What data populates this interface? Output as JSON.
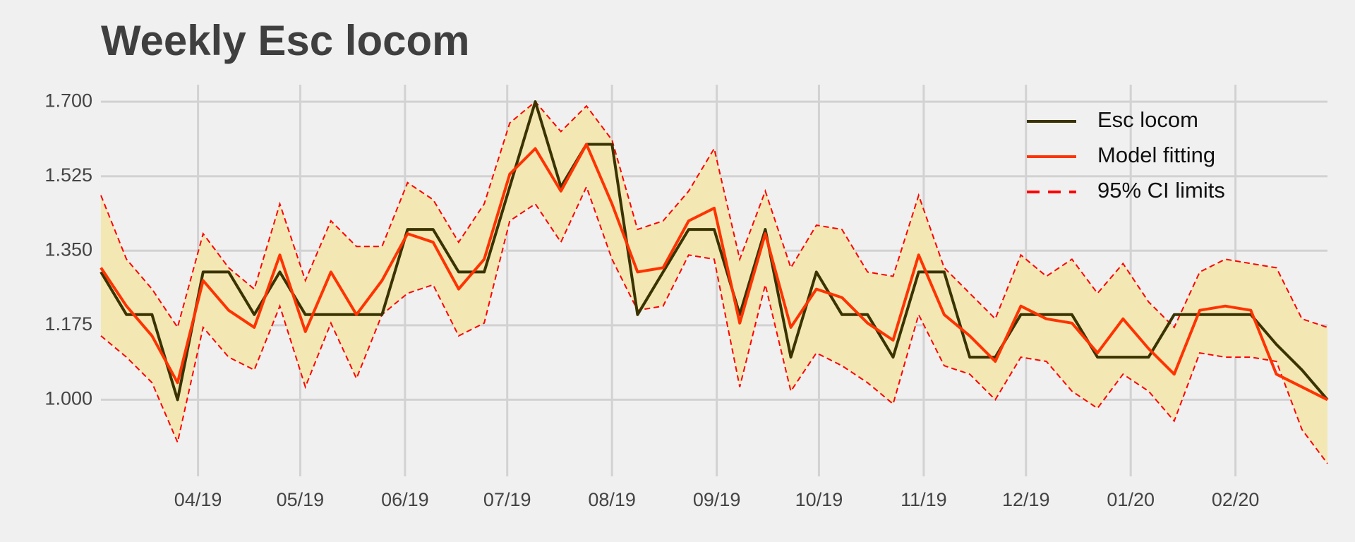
{
  "chart_data": {
    "type": "line",
    "title": "Weekly Esc locom",
    "x": [
      0,
      1,
      2,
      3,
      4,
      5,
      6,
      7,
      8,
      9,
      10,
      11,
      12,
      13,
      14,
      15,
      16,
      17,
      18,
      19,
      20,
      21,
      22,
      23,
      24,
      25,
      26,
      27,
      28,
      29,
      30,
      31,
      32,
      33,
      34,
      35,
      36,
      37,
      38,
      39,
      40,
      41,
      42,
      43,
      44,
      45,
      46,
      47,
      48
    ],
    "xlim": [
      0,
      48
    ],
    "xticks": [
      {
        "value": 3.8,
        "label": "04/19"
      },
      {
        "value": 7.8,
        "label": "05/19"
      },
      {
        "value": 11.9,
        "label": "06/19"
      },
      {
        "value": 15.9,
        "label": "07/19"
      },
      {
        "value": 20.0,
        "label": "08/19"
      },
      {
        "value": 24.1,
        "label": "09/19"
      },
      {
        "value": 28.1,
        "label": "10/19"
      },
      {
        "value": 32.2,
        "label": "11/19"
      },
      {
        "value": 36.2,
        "label": "12/19"
      },
      {
        "value": 40.3,
        "label": "01/20"
      },
      {
        "value": 44.4,
        "label": "02/20"
      }
    ],
    "ylim": [
      0.82,
      1.74
    ],
    "yticks": [
      {
        "value": 1.0,
        "label": "1.000"
      },
      {
        "value": 1.175,
        "label": "1.175"
      },
      {
        "value": 1.35,
        "label": "1.350"
      },
      {
        "value": 1.525,
        "label": "1.525"
      },
      {
        "value": 1.7,
        "label": "1.700"
      }
    ],
    "grid": true,
    "legend": "upper right",
    "series": [
      {
        "name": "Esc locom",
        "color": "#3a3300",
        "values": [
          1.3,
          1.2,
          1.2,
          1.0,
          1.3,
          1.3,
          1.2,
          1.3,
          1.2,
          1.2,
          1.2,
          1.2,
          1.4,
          1.4,
          1.3,
          1.3,
          1.5,
          1.7,
          1.5,
          1.6,
          1.6,
          1.2,
          1.3,
          1.4,
          1.4,
          1.2,
          1.4,
          1.1,
          1.3,
          1.2,
          1.2,
          1.1,
          1.3,
          1.3,
          1.1,
          1.1,
          1.2,
          1.2,
          1.2,
          1.1,
          1.1,
          1.1,
          1.2,
          1.2,
          1.2,
          1.2,
          1.13,
          1.07,
          1.0
        ]
      },
      {
        "name": "Model fitting",
        "color": "#ff3300",
        "values": [
          1.31,
          1.22,
          1.15,
          1.04,
          1.28,
          1.21,
          1.17,
          1.34,
          1.16,
          1.3,
          1.2,
          1.28,
          1.39,
          1.37,
          1.26,
          1.33,
          1.53,
          1.59,
          1.49,
          1.6,
          1.46,
          1.3,
          1.31,
          1.42,
          1.45,
          1.18,
          1.39,
          1.17,
          1.26,
          1.24,
          1.18,
          1.14,
          1.34,
          1.2,
          1.15,
          1.09,
          1.22,
          1.19,
          1.18,
          1.11,
          1.19,
          1.12,
          1.06,
          1.21,
          1.22,
          1.21,
          1.06,
          1.03,
          1.0
        ]
      },
      {
        "name": "95% CI limits",
        "color": "#ff0000",
        "dashed": true,
        "band_color": "#f3e8b4",
        "lower": [
          1.15,
          1.1,
          1.04,
          0.9,
          1.17,
          1.1,
          1.07,
          1.22,
          1.03,
          1.18,
          1.05,
          1.2,
          1.25,
          1.27,
          1.15,
          1.18,
          1.42,
          1.46,
          1.37,
          1.5,
          1.33,
          1.21,
          1.22,
          1.34,
          1.33,
          1.03,
          1.27,
          1.02,
          1.11,
          1.08,
          1.04,
          0.99,
          1.2,
          1.08,
          1.06,
          1.0,
          1.1,
          1.09,
          1.02,
          0.98,
          1.06,
          1.02,
          0.95,
          1.11,
          1.1,
          1.1,
          1.09,
          0.93,
          0.85
        ],
        "upper": [
          1.48,
          1.33,
          1.26,
          1.17,
          1.39,
          1.31,
          1.26,
          1.46,
          1.28,
          1.42,
          1.36,
          1.36,
          1.51,
          1.47,
          1.37,
          1.46,
          1.65,
          1.7,
          1.63,
          1.69,
          1.61,
          1.4,
          1.42,
          1.49,
          1.59,
          1.33,
          1.49,
          1.31,
          1.41,
          1.4,
          1.3,
          1.29,
          1.48,
          1.31,
          1.25,
          1.19,
          1.34,
          1.29,
          1.33,
          1.25,
          1.32,
          1.23,
          1.17,
          1.3,
          1.33,
          1.32,
          1.31,
          1.19,
          1.17
        ]
      }
    ]
  }
}
